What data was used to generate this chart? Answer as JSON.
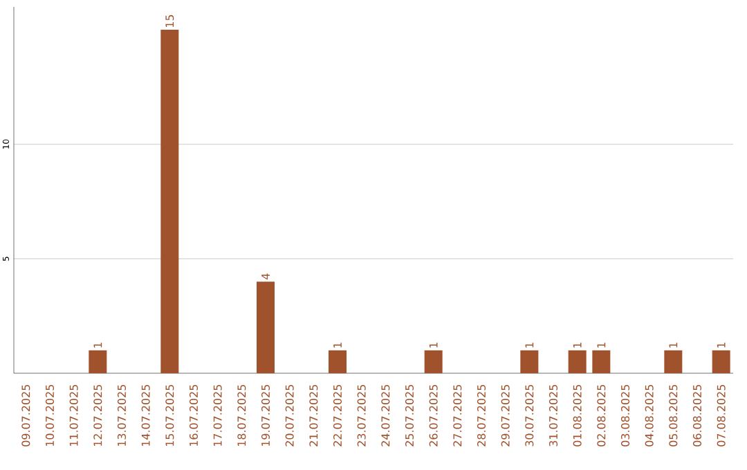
{
  "chart_data": {
    "type": "bar",
    "categories": [
      "09.07.2025",
      "10.07.2025",
      "11.07.2025",
      "12.07.2025",
      "13.07.2025",
      "14.07.2025",
      "15.07.2025",
      "16.07.2025",
      "17.07.2025",
      "18.07.2025",
      "19.07.2025",
      "20.07.2025",
      "21.07.2025",
      "22.07.2025",
      "23.07.2025",
      "24.07.2025",
      "25.07.2025",
      "26.07.2025",
      "27.07.2025",
      "28.07.2025",
      "29.07.2025",
      "30.07.2025",
      "31.07.2025",
      "01.08.2025",
      "02.08.2025",
      "03.08.2025",
      "04.08.2025",
      "05.08.2025",
      "06.08.2025",
      "07.08.2025"
    ],
    "values": [
      0,
      0,
      0,
      1,
      0,
      0,
      15,
      0,
      0,
      0,
      4,
      0,
      0,
      1,
      0,
      0,
      0,
      1,
      0,
      0,
      0,
      1,
      0,
      1,
      1,
      0,
      0,
      1,
      0,
      1
    ],
    "value_labels": [
      null,
      null,
      null,
      "1",
      null,
      null,
      "15",
      null,
      null,
      null,
      "4",
      null,
      null,
      "1",
      null,
      null,
      null,
      "1",
      null,
      null,
      null,
      "1",
      null,
      "1",
      "1",
      null,
      null,
      "1",
      null,
      "1"
    ],
    "color": "#a0522d",
    "ylim": [
      0,
      16
    ],
    "yticks": [
      5,
      10
    ],
    "grid": "y"
  }
}
